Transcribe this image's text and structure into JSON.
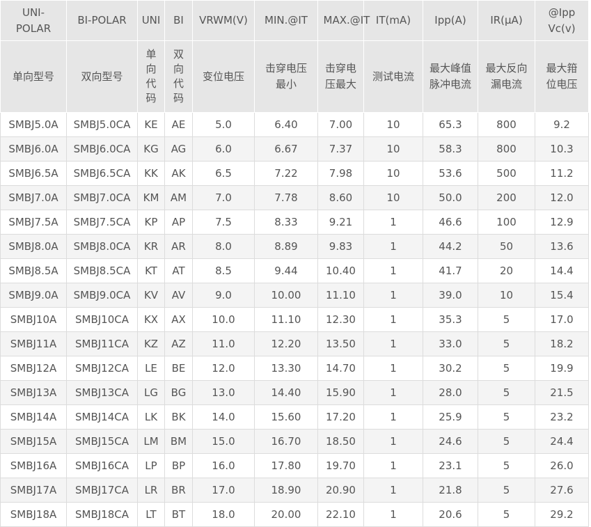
{
  "header": {
    "row1": [
      "UNI-POLAR",
      "BI-POLAR",
      "UNI",
      "BI",
      "VRWM(V)",
      "MIN.@IT",
      "MAX.@IT",
      "IT(mA)",
      "Ipp(A)",
      "IR(μA)",
      "@Ipp Vc(v)"
    ],
    "row2": [
      "单向型号",
      "双向型号",
      "单向代码",
      "双向代码",
      "变位电压",
      "击穿电压最小",
      "击穿电压最大",
      "测试电流",
      "最大峰值脉冲电流",
      "最大反向漏电流",
      "最大箝位电压"
    ]
  },
  "rows": [
    [
      "SMBJ5.0A",
      "SMBJ5.0CA",
      "KE",
      "AE",
      "5.0",
      "6.40",
      "7.00",
      "10",
      "65.3",
      "800",
      "9.2"
    ],
    [
      "SMBJ6.0A",
      "SMBJ6.0CA",
      "KG",
      "AG",
      "6.0",
      "6.67",
      "7.37",
      "10",
      "58.3",
      "800",
      "10.3"
    ],
    [
      "SMBJ6.5A",
      "SMBJ6.5CA",
      "KK",
      "AK",
      "6.5",
      "7.22",
      "7.98",
      "10",
      "53.6",
      "500",
      "11.2"
    ],
    [
      "SMBJ7.0A",
      "SMBJ7.0CA",
      "KM",
      "AM",
      "7.0",
      "7.78",
      "8.60",
      "10",
      "50.0",
      "200",
      "12.0"
    ],
    [
      "SMBJ7.5A",
      "SMBJ7.5CA",
      "KP",
      "AP",
      "7.5",
      "8.33",
      "9.21",
      "1",
      "46.6",
      "100",
      "12.9"
    ],
    [
      "SMBJ8.0A",
      "SMBJ8.0CA",
      "KR",
      "AR",
      "8.0",
      "8.89",
      "9.83",
      "1",
      "44.2",
      "50",
      "13.6"
    ],
    [
      "SMBJ8.5A",
      "SMBJ8.5CA",
      "KT",
      "AT",
      "8.5",
      "9.44",
      "10.40",
      "1",
      "41.7",
      "20",
      "14.4"
    ],
    [
      "SMBJ9.0A",
      "SMBJ9.0CA",
      "KV",
      "AV",
      "9.0",
      "10.00",
      "11.10",
      "1",
      "39.0",
      "10",
      "15.4"
    ],
    [
      "SMBJ10A",
      "SMBJ10CA",
      "KX",
      "AX",
      "10.0",
      "11.10",
      "12.30",
      "1",
      "35.3",
      "5",
      "17.0"
    ],
    [
      "SMBJ11A",
      "SMBJ11CA",
      "KZ",
      "AZ",
      "11.0",
      "12.20",
      "13.50",
      "1",
      "33.0",
      "5",
      "18.2"
    ],
    [
      "SMBJ12A",
      "SMBJ12CA",
      "LE",
      "BE",
      "12.0",
      "13.30",
      "14.70",
      "1",
      "30.2",
      "5",
      "19.9"
    ],
    [
      "SMBJ13A",
      "SMBJ13CA",
      "LG",
      "BG",
      "13.0",
      "14.40",
      "15.90",
      "1",
      "28.0",
      "5",
      "21.5"
    ],
    [
      "SMBJ14A",
      "SMBJ14CA",
      "LK",
      "BK",
      "14.0",
      "15.60",
      "17.20",
      "1",
      "25.9",
      "5",
      "23.2"
    ],
    [
      "SMBJ15A",
      "SMBJ15CA",
      "LM",
      "BM",
      "15.0",
      "16.70",
      "18.50",
      "1",
      "24.6",
      "5",
      "24.4"
    ],
    [
      "SMBJ16A",
      "SMBJ16CA",
      "LP",
      "BP",
      "16.0",
      "17.80",
      "19.70",
      "1",
      "23.1",
      "5",
      "26.0"
    ],
    [
      "SMBJ17A",
      "SMBJ17CA",
      "LR",
      "BR",
      "17.0",
      "18.90",
      "20.90",
      "1",
      "21.8",
      "5",
      "27.6"
    ],
    [
      "SMBJ18A",
      "SMBJ18CA",
      "LT",
      "BT",
      "18.0",
      "20.00",
      "22.10",
      "1",
      "20.6",
      "5",
      "29.2"
    ]
  ]
}
